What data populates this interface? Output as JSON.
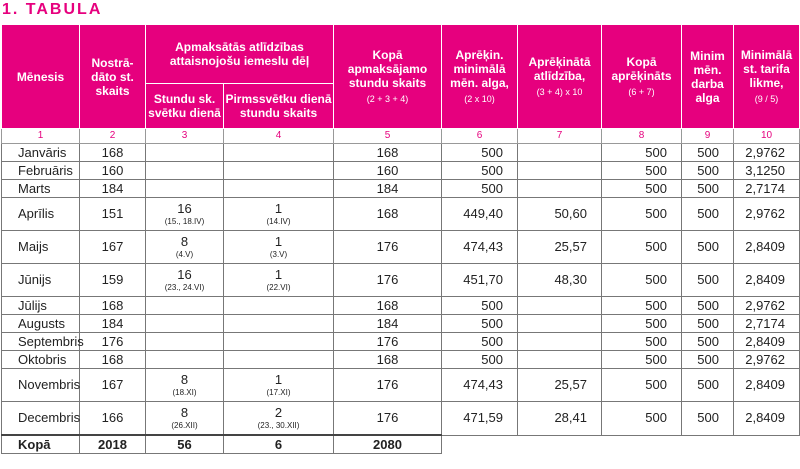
{
  "title": "1. TABULA",
  "headers": {
    "month": "Mēnesis",
    "worked": "Nostrā-dāto st. skaits",
    "paid_group": "Apmaksātās atlīdzības attaisnojošu iemeslu dēļ",
    "holiday_hours": "Stundu sk. svētku dienā",
    "pre_holiday_hours": "Pirmssvētku dienā stundu skaits",
    "total_paid": "Kopā apmaksājamo stundu skaits",
    "total_paid_sub": "(2 + 3 + 4)",
    "calc_min": "Aprēķin. minimālā mēn. alga,",
    "calc_min_sub": "(2 x 10)",
    "calc_comp": "Aprēķinātā atlīdzība,",
    "calc_comp_sub": "(3 + 4) x 10",
    "total_calc": "Kopā aprēķināts",
    "total_calc_sub": "(6 + 7)",
    "min_wage": "Minim mēn. darba alga",
    "min_rate": "Minimālā st. tarifa likme,",
    "min_rate_sub": "(9 / 5)"
  },
  "col_numbers": [
    "1",
    "2",
    "3",
    "4",
    "5",
    "6",
    "7",
    "8",
    "9",
    "10"
  ],
  "rows": [
    {
      "month": "Janvāris",
      "worked": "168",
      "h": "",
      "h_note": "",
      "p": "",
      "p_note": "",
      "total": "168",
      "calc": "500",
      "comp": "",
      "sum": "500",
      "min": "500",
      "rate": "2,9762"
    },
    {
      "month": "Februāris",
      "worked": "160",
      "h": "",
      "h_note": "",
      "p": "",
      "p_note": "",
      "total": "160",
      "calc": "500",
      "comp": "",
      "sum": "500",
      "min": "500",
      "rate": "3,1250"
    },
    {
      "month": "Marts",
      "worked": "184",
      "h": "",
      "h_note": "",
      "p": "",
      "p_note": "",
      "total": "184",
      "calc": "500",
      "comp": "",
      "sum": "500",
      "min": "500",
      "rate": "2,7174"
    },
    {
      "month": "Aprīlis",
      "worked": "151",
      "h": "16",
      "h_note": "(15., 18.IV)",
      "p": "1",
      "p_note": "(14.IV)",
      "total": "168",
      "calc": "449,40",
      "comp": "50,60",
      "sum": "500",
      "min": "500",
      "rate": "2,9762"
    },
    {
      "month": "Maijs",
      "worked": "167",
      "h": "8",
      "h_note": "(4.V)",
      "p": "1",
      "p_note": "(3.V)",
      "total": "176",
      "calc": "474,43",
      "comp": "25,57",
      "sum": "500",
      "min": "500",
      "rate": "2,8409"
    },
    {
      "month": "Jūnijs",
      "worked": "159",
      "h": "16",
      "h_note": "(23., 24.VI)",
      "p": "1",
      "p_note": "(22.VI)",
      "total": "176",
      "calc": "451,70",
      "comp": "48,30",
      "sum": "500",
      "min": "500",
      "rate": "2,8409"
    },
    {
      "month": "Jūlijs",
      "worked": "168",
      "h": "",
      "h_note": "",
      "p": "",
      "p_note": "",
      "total": "168",
      "calc": "500",
      "comp": "",
      "sum": "500",
      "min": "500",
      "rate": "2,9762"
    },
    {
      "month": "Augusts",
      "worked": "184",
      "h": "",
      "h_note": "",
      "p": "",
      "p_note": "",
      "total": "184",
      "calc": "500",
      "comp": "",
      "sum": "500",
      "min": "500",
      "rate": "2,7174"
    },
    {
      "month": "Septembris",
      "worked": "176",
      "h": "",
      "h_note": "",
      "p": "",
      "p_note": "",
      "total": "176",
      "calc": "500",
      "comp": "",
      "sum": "500",
      "min": "500",
      "rate": "2,8409"
    },
    {
      "month": "Oktobris",
      "worked": "168",
      "h": "",
      "h_note": "",
      "p": "",
      "p_note": "",
      "total": "168",
      "calc": "500",
      "comp": "",
      "sum": "500",
      "min": "500",
      "rate": "2,9762"
    },
    {
      "month": "Novembris",
      "worked": "167",
      "h": "8",
      "h_note": "(18.XI)",
      "p": "1",
      "p_note": "(17.XI)",
      "total": "176",
      "calc": "474,43",
      "comp": "25,57",
      "sum": "500",
      "min": "500",
      "rate": "2,8409"
    },
    {
      "month": "Decembris",
      "worked": "166",
      "h": "8",
      "h_note": "(26.XII)",
      "p": "2",
      "p_note": "(23., 30.XII)",
      "total": "176",
      "calc": "471,59",
      "comp": "28,41",
      "sum": "500",
      "min": "500",
      "rate": "2,8409"
    }
  ],
  "totals": {
    "label": "Kopā",
    "worked": "2018",
    "h": "56",
    "p": "6",
    "total": "2080"
  },
  "colors": {
    "accent": "#e6007e"
  }
}
